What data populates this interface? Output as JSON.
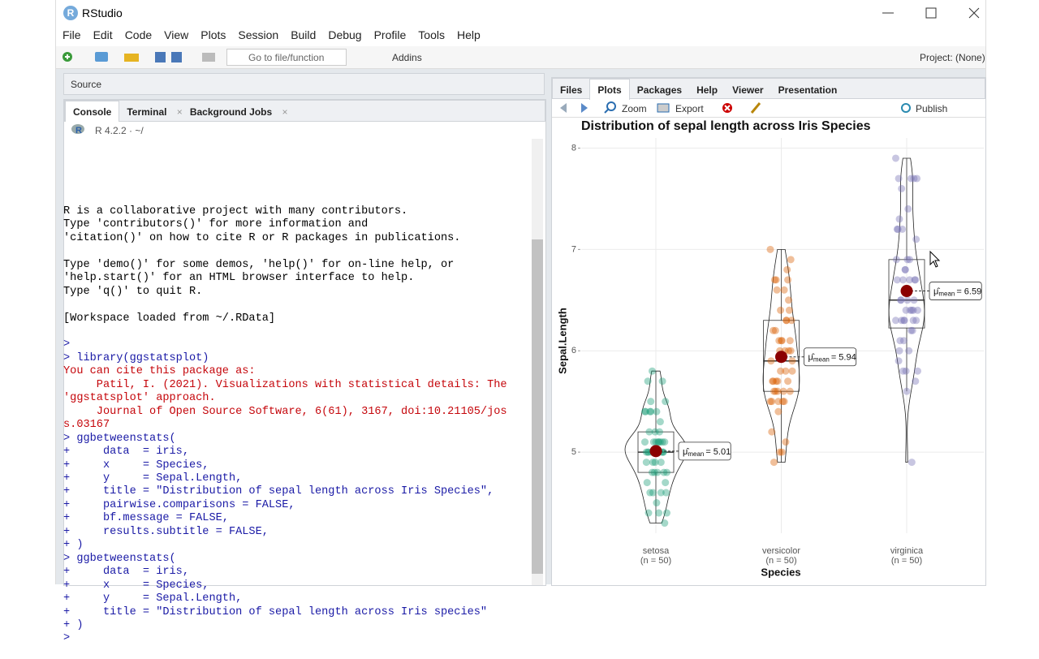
{
  "window": {
    "title": "RStudio"
  },
  "menu": [
    "File",
    "Edit",
    "Code",
    "View",
    "Plots",
    "Session",
    "Build",
    "Debug",
    "Profile",
    "Tools",
    "Help"
  ],
  "toolbar": {
    "go_to_file": "Go to file/function",
    "addins": "Addins",
    "project": "Project: (None)"
  },
  "source_pane": {
    "title": "Source"
  },
  "console_pane": {
    "tabs": [
      "Console",
      "Terminal",
      "Background Jobs"
    ],
    "r_version": "R 4.2.2 · ~/",
    "blocks": [
      [
        {
          "text": "R is a collaborative project with many contributors.",
          "kind": "output"
        },
        {
          "text": "Type 'contributors()' for more information and",
          "kind": "output"
        },
        {
          "text": "'citation()' on how to cite R or R packages in publications.",
          "kind": "output"
        }
      ],
      [
        {
          "text": "Type 'demo()' for some demos, 'help()' for on-line help, or",
          "kind": "output"
        },
        {
          "text": "'help.start()' for an HTML browser interface to help.",
          "kind": "output"
        },
        {
          "text": "Type 'q()' to quit R.",
          "kind": "output"
        }
      ],
      [
        {
          "text": "[Workspace loaded from ~/.RData]",
          "kind": "output"
        }
      ],
      [
        {
          "text": ">",
          "kind": "code"
        },
        {
          "text": "> library(ggstatsplot)",
          "kind": "code"
        },
        {
          "text": "You can cite this package as:",
          "kind": "message"
        },
        {
          "text": "     Patil, I. (2021). Visualizations with statistical details: The",
          "kind": "message"
        },
        {
          "text": "'ggstatsplot' approach.",
          "kind": "message"
        },
        {
          "text": "     Journal of Open Source Software, 6(61), 3167, doi:10.21105/jos",
          "kind": "message"
        },
        {
          "text": "s.03167",
          "kind": "message"
        },
        {
          "text": "> ggbetweenstats(",
          "kind": "code"
        },
        {
          "text": "+     data  = iris,",
          "kind": "code"
        },
        {
          "text": "+     x     = Species,",
          "kind": "code"
        },
        {
          "text": "+     y     = Sepal.Length,",
          "kind": "code"
        },
        {
          "text": "+     title = \"Distribution of sepal length across Iris Species\",",
          "kind": "code"
        },
        {
          "text": "+     pairwise.comparisons = FALSE,",
          "kind": "code"
        },
        {
          "text": "+     bf.message = FALSE,",
          "kind": "code"
        },
        {
          "text": "+     results.subtitle = FALSE,",
          "kind": "code"
        },
        {
          "text": "+ )",
          "kind": "code"
        },
        {
          "text": "> ggbetweenstats(",
          "kind": "code"
        },
        {
          "text": "+     data  = iris,",
          "kind": "code"
        },
        {
          "text": "+     x     = Species,",
          "kind": "code"
        },
        {
          "text": "+     y     = Sepal.Length,",
          "kind": "code"
        },
        {
          "text": "+     title = \"Distribution of sepal length across Iris species\"",
          "kind": "code"
        },
        {
          "text": "+ )",
          "kind": "code"
        },
        {
          "text": ">",
          "kind": "code"
        }
      ]
    ]
  },
  "files_pane": {
    "tabs": [
      "Files",
      "Plots",
      "Packages",
      "Help",
      "Viewer",
      "Presentation"
    ],
    "active_tab": 1,
    "zoom": "Zoom",
    "export": "Export",
    "publish": "Publish"
  },
  "chart_data": {
    "type": "violin",
    "title": "Distribution of sepal length across Iris Species",
    "x_label": "Species",
    "y_label": "Sepal.Length",
    "categories": [
      "setosa",
      "versicolor",
      "virginica"
    ],
    "n_labels": [
      "(n = 50)",
      "(n = 50)",
      "(n = 50)"
    ],
    "series": [
      {
        "color": "#1b9e77",
        "values": [
          5.1,
          4.9,
          4.7,
          4.6,
          5.0,
          5.4,
          4.6,
          5.0,
          4.4,
          4.9,
          5.4,
          4.8,
          4.8,
          4.3,
          5.8,
          5.7,
          5.4,
          5.1,
          5.7,
          5.1,
          5.4,
          5.1,
          4.6,
          5.1,
          4.8,
          5.0,
          5.0,
          5.2,
          5.2,
          4.7,
          4.8,
          5.4,
          5.2,
          5.5,
          4.9,
          5.0,
          5.5,
          4.9,
          4.4,
          5.1,
          5.0,
          4.5,
          4.4,
          5.0,
          5.1,
          4.8,
          5.1,
          4.6,
          5.3,
          5.0
        ]
      },
      {
        "color": "#d95f02",
        "values": [
          7.0,
          6.4,
          6.9,
          5.5,
          6.5,
          5.7,
          6.3,
          4.9,
          6.6,
          5.2,
          5.0,
          5.9,
          6.0,
          6.1,
          5.6,
          6.7,
          5.6,
          5.8,
          6.2,
          5.6,
          5.9,
          6.1,
          6.3,
          6.1,
          6.4,
          6.6,
          6.8,
          6.7,
          6.0,
          5.7,
          5.5,
          5.5,
          5.8,
          6.0,
          5.4,
          6.0,
          6.7,
          6.3,
          5.6,
          5.5,
          5.5,
          6.1,
          5.8,
          5.0,
          5.6,
          5.7,
          5.7,
          6.2,
          5.1,
          5.7
        ]
      },
      {
        "color": "#7570b3",
        "values": [
          6.3,
          5.8,
          7.1,
          6.3,
          6.5,
          7.6,
          4.9,
          7.3,
          6.7,
          7.2,
          6.5,
          6.4,
          6.8,
          5.7,
          5.8,
          6.4,
          6.5,
          7.7,
          7.7,
          6.0,
          6.9,
          5.6,
          7.7,
          6.3,
          6.7,
          7.2,
          6.2,
          6.1,
          6.4,
          7.2,
          7.4,
          7.9,
          6.4,
          6.3,
          6.1,
          7.7,
          6.3,
          6.4,
          6.0,
          6.9,
          6.7,
          6.9,
          5.8,
          6.8,
          6.7,
          6.7,
          6.3,
          6.5,
          6.2,
          5.9
        ]
      }
    ],
    "means": [
      5.01,
      5.94,
      6.59
    ],
    "mean_color": "#8b0000",
    "mean_symbol": "μ̂",
    "mean_subscript": "mean",
    "mean_equals": "=",
    "ylim": [
      4.2,
      8.1
    ],
    "yticks": [
      5,
      6,
      7,
      8
    ],
    "grid": true
  }
}
